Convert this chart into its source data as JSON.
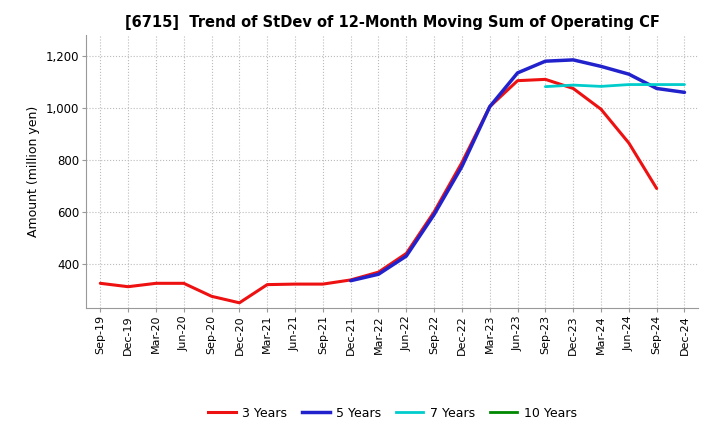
{
  "title": "[6715]  Trend of StDev of 12-Month Moving Sum of Operating CF",
  "ylabel": "Amount (million yen)",
  "background_color": "#ffffff",
  "grid_color": "#bbbbbb",
  "x_labels": [
    "Sep-19",
    "Dec-19",
    "Mar-20",
    "Jun-20",
    "Sep-20",
    "Dec-20",
    "Mar-21",
    "Jun-21",
    "Sep-21",
    "Dec-21",
    "Mar-22",
    "Jun-22",
    "Sep-22",
    "Dec-22",
    "Mar-23",
    "Jun-23",
    "Sep-23",
    "Dec-23",
    "Mar-24",
    "Jun-24",
    "Sep-24",
    "Dec-24"
  ],
  "ylim": [
    230,
    1280
  ],
  "yticks": [
    400,
    600,
    800,
    1000,
    1200
  ],
  "ytick_labels": [
    "400",
    "600",
    "800",
    "1,000",
    "1,200"
  ],
  "series": {
    "3 Years": {
      "color": "#ee1111",
      "linewidth": 2.2,
      "values": [
        325,
        312,
        325,
        325,
        275,
        250,
        320,
        322,
        322,
        338,
        368,
        440,
        600,
        790,
        1005,
        1105,
        1110,
        1075,
        995,
        865,
        690,
        null
      ]
    },
    "5 Years": {
      "color": "#2222cc",
      "linewidth": 2.5,
      "values": [
        null,
        null,
        null,
        null,
        null,
        null,
        null,
        null,
        null,
        335,
        360,
        430,
        590,
        775,
        1005,
        1135,
        1180,
        1185,
        1160,
        1130,
        1075,
        1060
      ]
    },
    "7 Years": {
      "color": "#00cccc",
      "linewidth": 2.0,
      "values": [
        null,
        null,
        null,
        null,
        null,
        null,
        null,
        null,
        null,
        null,
        null,
        null,
        null,
        null,
        null,
        null,
        1082,
        1088,
        1083,
        1090,
        1090,
        1090
      ]
    },
    "10 Years": {
      "color": "#008800",
      "linewidth": 2.0,
      "values": [
        null,
        null,
        null,
        null,
        null,
        null,
        null,
        null,
        null,
        null,
        null,
        null,
        null,
        null,
        null,
        null,
        null,
        null,
        null,
        null,
        null,
        null
      ]
    }
  },
  "legend_entries": [
    {
      "label": "3 Years",
      "color": "#ee1111",
      "linewidth": 2.2
    },
    {
      "label": "5 Years",
      "color": "#2222cc",
      "linewidth": 2.5
    },
    {
      "label": "7 Years",
      "color": "#00cccc",
      "linewidth": 2.0
    },
    {
      "label": "10 Years",
      "color": "#008800",
      "linewidth": 2.0
    }
  ]
}
